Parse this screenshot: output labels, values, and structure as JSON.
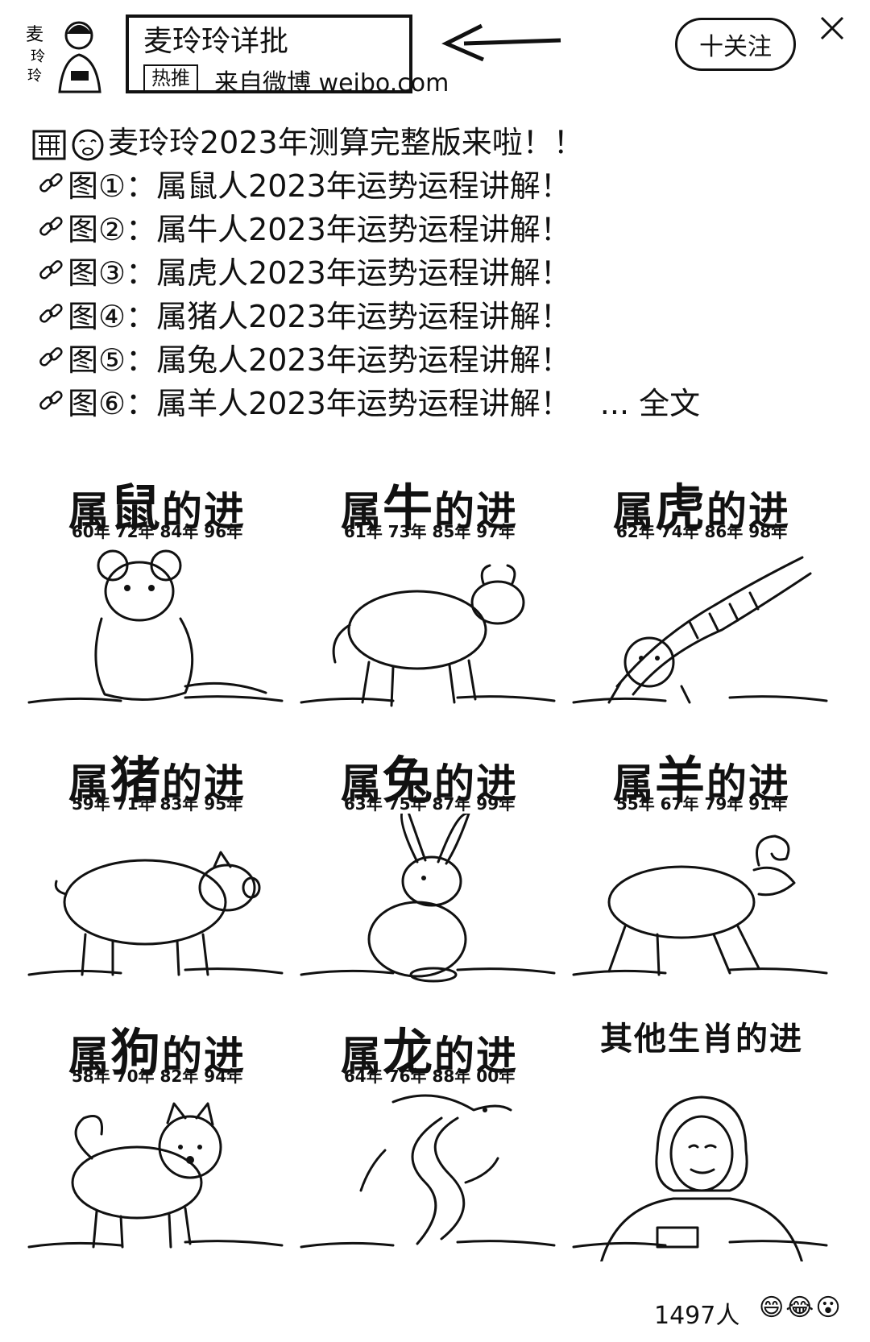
{
  "header": {
    "author_name": "麦玲玲详批",
    "hot_tag": "热推",
    "source_text": "来自微博 weibo.com",
    "follow_label": "十关注",
    "avatar_text": "麦玲玲"
  },
  "post": {
    "title_line": "麦玲玲2023年测算完整版来啦！！",
    "items": [
      "图①：属鼠人2023年运势运程讲解！",
      "图②：属牛人2023年运势运程讲解！",
      "图③：属虎人2023年运势运程讲解！",
      "图④：属猪人2023年运势运程讲解！",
      "图⑤：属兔人2023年运势运程讲解！",
      "图⑥：属羊人2023年运势运程讲解！"
    ],
    "full_text_link": "... 全文"
  },
  "grid": [
    {
      "pre": "属",
      "big": "鼠",
      "post": "的进",
      "years": "60年 72年 84年 96年",
      "animal": "rat"
    },
    {
      "pre": "属",
      "big": "牛",
      "post": "的进",
      "years": "61年 73年 85年 97年",
      "animal": "ox"
    },
    {
      "pre": "属",
      "big": "虎",
      "post": "的进",
      "years": "62年 74年 86年 98年",
      "animal": "tiger"
    },
    {
      "pre": "属",
      "big": "猪",
      "post": "的进",
      "years": "59年 71年 83年 95年",
      "animal": "pig"
    },
    {
      "pre": "属",
      "big": "兔",
      "post": "的进",
      "years": "63年 75年 87年 99年",
      "animal": "rabbit"
    },
    {
      "pre": "属",
      "big": "羊",
      "post": "的进",
      "years": "55年 67年 79年 91年",
      "animal": "goat"
    },
    {
      "pre": "属",
      "big": "狗",
      "post": "的进",
      "years": "58年 70年 82年 94年",
      "animal": "dog"
    },
    {
      "pre": "属",
      "big": "龙",
      "post": "的进",
      "years": "64年 76年 88年 00年",
      "animal": "dragon"
    },
    {
      "pre": "",
      "big": "",
      "post": "其他生肖的进",
      "years": "",
      "animal": "person"
    }
  ],
  "footer": {
    "count": "1497人",
    "reactions": "😄😂😮"
  }
}
